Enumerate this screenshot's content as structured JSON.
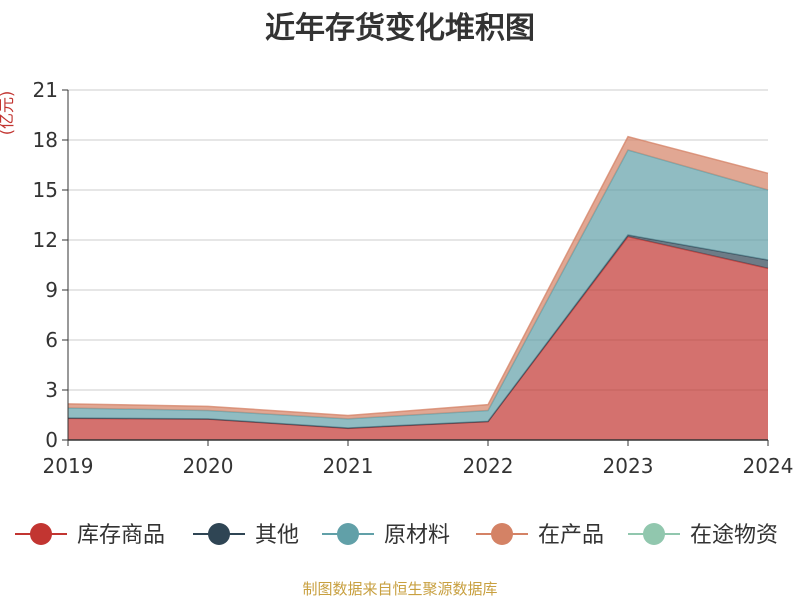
{
  "chart_data": {
    "type": "area",
    "title": "近年存货变化堆积图",
    "ylabel": "(亿元)",
    "xlabel": "",
    "x": [
      "2019",
      "2020",
      "2021",
      "2022",
      "2023",
      "2024"
    ],
    "yticks": [
      "0",
      "3",
      "6",
      "9",
      "12",
      "15",
      "18",
      "21"
    ],
    "ylim": [
      0,
      21
    ],
    "stacked": true,
    "grid": true,
    "legend_position": "bottom",
    "series": [
      {
        "name": "库存商品",
        "color": "#c23531",
        "values": [
          1.3,
          1.25,
          0.7,
          1.1,
          12.2,
          10.3
        ]
      },
      {
        "name": "其他",
        "color": "#2f4554",
        "values": [
          0.02,
          0.02,
          0.02,
          0.02,
          0.1,
          0.5
        ]
      },
      {
        "name": "原材料",
        "color": "#61a0a8",
        "values": [
          0.6,
          0.5,
          0.55,
          0.65,
          5.1,
          4.2
        ]
      },
      {
        "name": "在产品",
        "color": "#d48265",
        "values": [
          0.25,
          0.25,
          0.2,
          0.35,
          0.8,
          1.0
        ]
      },
      {
        "name": "在途物资",
        "color": "#91c7ae",
        "values": [
          0.0,
          0.0,
          0.0,
          0.0,
          0.0,
          0.0
        ]
      }
    ]
  },
  "source_text": "制图数据来自恒生聚源数据库",
  "colors": {
    "unit_label": "#c23531",
    "source_text": "#c8a040",
    "axis": "#333333",
    "grid": "#cccccc"
  }
}
